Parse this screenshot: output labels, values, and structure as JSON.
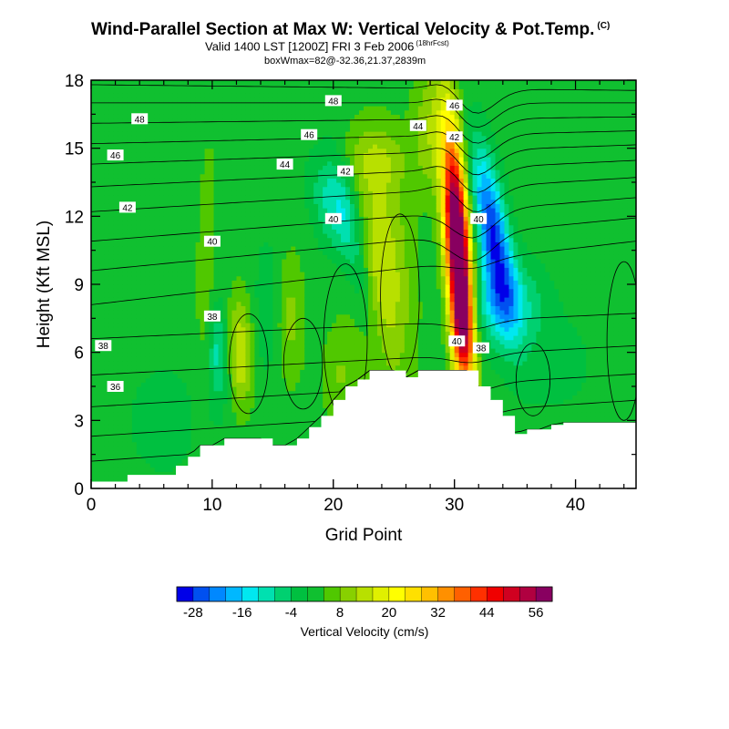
{
  "header": {
    "title": "Wind-Parallel Section at Max W: Vertical Velocity & Pot.Temp.",
    "title_mark": "(C)",
    "subtitle": "Valid 1400 LST [1200Z] FRI 3 Feb 2006",
    "subtitle_mark": "(18hrFcst)",
    "subtitle2": "boxWmax=82@-32.36,21.37,2839m"
  },
  "chart_data": {
    "type": "heatmap",
    "xlabel": "Grid Point",
    "ylabel": "Height (Kft MSL)",
    "xlim": [
      0,
      45
    ],
    "ylim": [
      0,
      18
    ],
    "x_ticks": [
      0,
      10,
      20,
      30,
      40
    ],
    "y_ticks": [
      0,
      3,
      6,
      9,
      12,
      15,
      18
    ],
    "colorbar": {
      "title": "Vertical Velocity (cm/s)",
      "levels": [
        -32,
        -28,
        -24,
        -20,
        -16,
        -12,
        -8,
        -4,
        0,
        4,
        8,
        12,
        16,
        20,
        24,
        28,
        32,
        36,
        40,
        44,
        48,
        52,
        56,
        60
      ],
      "tick_labels": [
        -28,
        -16,
        -4,
        8,
        20,
        32,
        44,
        56
      ],
      "colors": [
        "#0000e8",
        "#0050f0",
        "#0088ff",
        "#00b8ff",
        "#00e8f0",
        "#00e0b0",
        "#00d070",
        "#00c040",
        "#10c030",
        "#50c800",
        "#88d000",
        "#b8e000",
        "#e0f000",
        "#ffff00",
        "#ffe000",
        "#ffc000",
        "#ff9000",
        "#ff6000",
        "#ff3000",
        "#f00000",
        "#d00020",
        "#b00040",
        "#880060"
      ]
    },
    "terrain": [
      [
        0,
        0.3
      ],
      [
        1,
        0.3
      ],
      [
        2,
        0.3
      ],
      [
        3,
        0.6
      ],
      [
        4,
        0.6
      ],
      [
        5,
        0.6
      ],
      [
        6,
        0.6
      ],
      [
        7,
        1.0
      ],
      [
        8,
        1.4
      ],
      [
        9,
        1.9
      ],
      [
        10,
        1.9
      ],
      [
        11,
        2.2
      ],
      [
        12,
        2.2
      ],
      [
        13,
        2.2
      ],
      [
        14,
        2.2
      ],
      [
        15,
        1.9
      ],
      [
        16,
        1.9
      ],
      [
        17,
        2.2
      ],
      [
        18,
        2.7
      ],
      [
        19,
        3.2
      ],
      [
        20,
        3.9
      ],
      [
        21,
        4.5
      ],
      [
        22,
        4.8
      ],
      [
        23,
        5.2
      ],
      [
        24,
        5.2
      ],
      [
        25,
        5.2
      ],
      [
        26,
        4.9
      ],
      [
        27,
        5.2
      ],
      [
        28,
        5.2
      ],
      [
        29,
        5.2
      ],
      [
        30,
        5.2
      ],
      [
        31,
        5.2
      ],
      [
        32,
        4.5
      ],
      [
        33,
        3.9
      ],
      [
        34,
        3.2
      ],
      [
        35,
        2.4
      ],
      [
        36,
        2.6
      ],
      [
        37,
        2.6
      ],
      [
        38,
        2.8
      ],
      [
        39,
        2.9
      ],
      [
        40,
        2.9
      ],
      [
        41,
        2.9
      ],
      [
        42,
        2.9
      ],
      [
        43,
        2.9
      ],
      [
        44,
        2.9
      ],
      [
        45,
        2.9
      ]
    ],
    "w_features": [
      {
        "x": 30.3,
        "z": 10.5,
        "sx": 0.7,
        "sz": 3.6,
        "tilt": -0.12,
        "amp": 72
      },
      {
        "x": 30.6,
        "z": 7.0,
        "sx": 0.6,
        "sz": 1.6,
        "tilt": -0.05,
        "amp": 20
      },
      {
        "x": 33.2,
        "z": 11.2,
        "sx": 0.9,
        "sz": 2.6,
        "tilt": -0.3,
        "amp": -30
      },
      {
        "x": 34.0,
        "z": 8.2,
        "sx": 2.2,
        "sz": 1.3,
        "tilt": 0,
        "amp": -14
      },
      {
        "x": 24.0,
        "z": 9.5,
        "sx": 1.6,
        "sz": 3.6,
        "tilt": -0.1,
        "amp": 14
      },
      {
        "x": 22.0,
        "z": 10.0,
        "sx": 0.8,
        "sz": 3.0,
        "tilt": -0.35,
        "amp": -10
      },
      {
        "x": 20.0,
        "z": 12.5,
        "sx": 1.2,
        "sz": 1.5,
        "tilt": -0.3,
        "amp": -12
      },
      {
        "x": 12.3,
        "z": 6.0,
        "sx": 0.7,
        "sz": 1.7,
        "tilt": -0.05,
        "amp": 14
      },
      {
        "x": 10.5,
        "z": 6.0,
        "sx": 0.6,
        "sz": 1.5,
        "tilt": 0,
        "amp": -11
      },
      {
        "x": 9.5,
        "z": 10.0,
        "sx": 0.5,
        "sz": 3.5,
        "tilt": 0.05,
        "amp": 6
      },
      {
        "x": 16.5,
        "z": 7.5,
        "sx": 0.8,
        "sz": 2.0,
        "tilt": 0,
        "amp": 7
      },
      {
        "x": 14.5,
        "z": 8.0,
        "sx": 0.7,
        "sz": 2.2,
        "tilt": 0,
        "amp": -5
      },
      {
        "x": 28.0,
        "z": 16.0,
        "sx": 1.0,
        "sz": 2.0,
        "tilt": 0,
        "amp": 9
      },
      {
        "x": 23.5,
        "z": 14.5,
        "sx": 2.0,
        "sz": 1.0,
        "tilt": 0,
        "amp": 7
      },
      {
        "x": 38.0,
        "z": 5.5,
        "sx": 2.5,
        "sz": 1.5,
        "tilt": 0,
        "amp": -4
      },
      {
        "x": 20.5,
        "z": 5.0,
        "sx": 1.0,
        "sz": 1.5,
        "tilt": 0,
        "amp": 6
      },
      {
        "x": 6.0,
        "z": 3.0,
        "sx": 3.0,
        "sz": 2.5,
        "tilt": 0,
        "amp": -3
      }
    ],
    "theta_labels": [
      {
        "value": "36",
        "x": 2.0,
        "z": 4.5
      },
      {
        "value": "38",
        "x": 1.0,
        "z": 6.3
      },
      {
        "value": "38",
        "x": 10.0,
        "z": 7.6
      },
      {
        "value": "40",
        "x": 10.0,
        "z": 10.9
      },
      {
        "value": "42",
        "x": 3.0,
        "z": 12.4
      },
      {
        "value": "44",
        "x": 16.0,
        "z": 14.3
      },
      {
        "value": "46",
        "x": 2.0,
        "z": 14.7
      },
      {
        "value": "48",
        "x": 4.0,
        "z": 16.3
      },
      {
        "value": "46",
        "x": 18.0,
        "z": 15.6
      },
      {
        "value": "48",
        "x": 20.0,
        "z": 17.1
      },
      {
        "value": "42",
        "x": 21.0,
        "z": 14.0
      },
      {
        "value": "40",
        "x": 20.0,
        "z": 11.9
      },
      {
        "value": "44",
        "x": 27.0,
        "z": 16.0
      },
      {
        "value": "46",
        "x": 30.0,
        "z": 16.9
      },
      {
        "value": "42",
        "x": 30.0,
        "z": 15.5
      },
      {
        "value": "40",
        "x": 32.0,
        "z": 11.9
      },
      {
        "value": "40",
        "x": 30.2,
        "z": 6.5
      },
      {
        "value": "38",
        "x": 32.2,
        "z": 6.2
      }
    ]
  }
}
